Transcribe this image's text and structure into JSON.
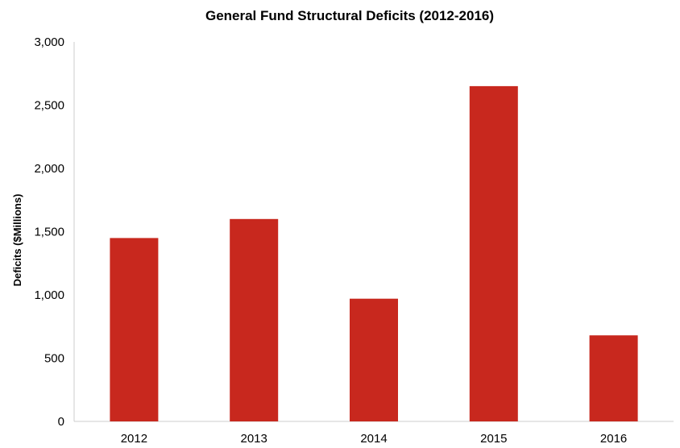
{
  "chart_data": {
    "type": "bar",
    "title": "General Fund Structural Deficits (2012-2016)",
    "xlabel": "",
    "ylabel": "Deficits ($Millions)",
    "categories": [
      "2012",
      "2013",
      "2014",
      "2015",
      "2016"
    ],
    "values": [
      1450,
      1600,
      970,
      2650,
      680
    ],
    "ylim": [
      0,
      3000
    ],
    "yticks": [
      0,
      500,
      1000,
      1500,
      2000,
      2500,
      3000
    ],
    "ytick_labels": [
      "0",
      "500",
      "1,000",
      "1,500",
      "2,000",
      "2,500",
      "3,000"
    ],
    "grid": false,
    "legend": "none",
    "bar_color": "#c8281e",
    "axis_color": "#cccccc"
  }
}
